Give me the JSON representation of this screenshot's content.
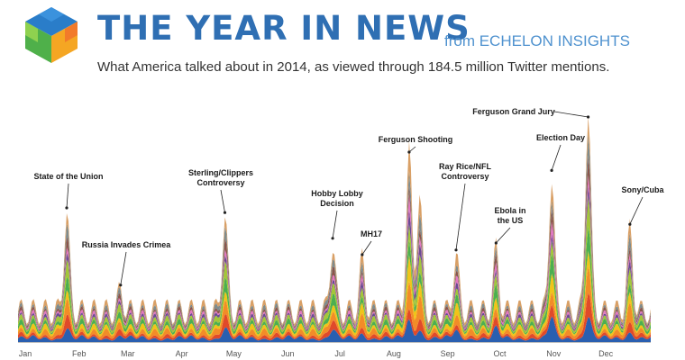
{
  "header": {
    "logo": "cube-logo",
    "title": "THE YEAR IN NEWS",
    "from": "from ECHELON INSIGHTS",
    "subtitle": "What America talked about in 2014, as viewed through 184.5 million Twitter mentions."
  },
  "colors": {
    "title": "#2f6fb3",
    "from": "#4f92cf",
    "logo": [
      "#2a7dc9",
      "#4fb04a",
      "#f5a623",
      "#f27a2a",
      "#8fd14f"
    ]
  },
  "chart_data": {
    "type": "area",
    "stacked": true,
    "x_axis": {
      "type": "date",
      "start": "2014-01-01",
      "end": "2014-12-31",
      "tick_labels": [
        "Jan",
        "Feb",
        "Mar",
        "Apr",
        "May",
        "Jun",
        "Jul",
        "Aug",
        "Sep",
        "Oct",
        "Nov",
        "Dec"
      ]
    },
    "y_axis": {
      "shown": false,
      "units": "relative Twitter mentions",
      "ylim": [
        0,
        100
      ]
    },
    "grid": false,
    "baseline_noise": {
      "mean": 13,
      "weekly_amplitude": 4
    },
    "peaks": [
      {
        "date": "2014-01-29",
        "value": 55
      },
      {
        "date": "2014-03-01",
        "value": 22
      },
      {
        "date": "2014-04-30",
        "value": 53
      },
      {
        "date": "2014-07-01",
        "value": 42
      },
      {
        "date": "2014-07-18",
        "value": 35
      },
      {
        "date": "2014-08-14",
        "value": 81
      },
      {
        "date": "2014-08-20",
        "value": 62
      },
      {
        "date": "2014-09-10",
        "value": 37
      },
      {
        "date": "2014-10-03",
        "value": 40
      },
      {
        "date": "2014-11-04",
        "value": 71
      },
      {
        "date": "2014-11-25",
        "value": 100
      },
      {
        "date": "2014-12-19",
        "value": 48
      }
    ],
    "layers": [
      {
        "color": "#2a5fb0",
        "share": 0.12
      },
      {
        "color": "#e04a2a",
        "share": 0.08
      },
      {
        "color": "#f28c28",
        "share": 0.12
      },
      {
        "color": "#f0c419",
        "share": 0.1
      },
      {
        "color": "#4caf50",
        "share": 0.1
      },
      {
        "color": "#a4c639",
        "share": 0.1
      },
      {
        "color": "#6a4c93",
        "share": 0.06
      },
      {
        "color": "#e377c2",
        "share": 0.06
      },
      {
        "color": "#8c564b",
        "share": 0.07
      },
      {
        "color": "#7f8c8d",
        "share": 0.08
      },
      {
        "color": "#d9a066",
        "share": 0.11
      }
    ],
    "annotations": [
      {
        "lines": [
          "State of the Union"
        ],
        "date": "2014-01-29"
      },
      {
        "lines": [
          "Russia Invades Crimea"
        ],
        "date": "2014-03-01"
      },
      {
        "lines": [
          "Sterling/Clippers",
          "Controversy"
        ],
        "date": "2014-04-30"
      },
      {
        "lines": [
          "Hobby Lobby",
          "Decision"
        ],
        "date": "2014-07-01"
      },
      {
        "lines": [
          "MH17"
        ],
        "date": "2014-07-18"
      },
      {
        "lines": [
          "Ferguson Shooting"
        ],
        "date": "2014-08-14"
      },
      {
        "lines": [
          "Ray Rice/NFL",
          "Controversy"
        ],
        "date": "2014-09-10"
      },
      {
        "lines": [
          "Ebola in",
          "the US"
        ],
        "date": "2014-10-03"
      },
      {
        "lines": [
          "Election Day"
        ],
        "date": "2014-11-04"
      },
      {
        "lines": [
          "Ferguson Grand Jury"
        ],
        "date": "2014-11-25"
      },
      {
        "lines": [
          "Sony/Cuba"
        ],
        "date": "2014-12-19"
      }
    ]
  }
}
